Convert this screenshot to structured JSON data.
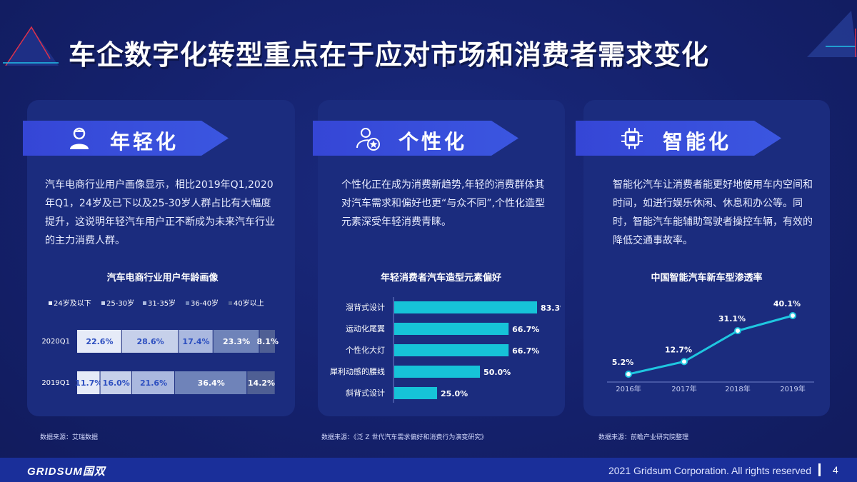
{
  "title": "车企数字化转型重点在于应对市场和消费者需求变化",
  "sections": [
    {
      "heading": "年轻化",
      "icon": "user-icon",
      "description": "汽车电商行业用户画像显示，相比2019年Q1,2020年Q1，24岁及已下以及25-30岁人群占比有大幅度提升，这说明年轻汽车用户正不断成为未来汽车行业的主力消费人群。",
      "chart_title": "汽车电商行业用户年龄画像",
      "source": "数据来源：艾瑞数据"
    },
    {
      "heading": "个性化",
      "icon": "person-star-icon",
      "description": "个性化正在成为消费新趋势,年轻的消费群体其对汽车需求和偏好也更“与众不同”,个性化造型元素深受年轻消费青睐。",
      "chart_title": "年轻消费者汽车造型元素偏好",
      "source": "数据来源：《泛 Z 世代汽车需求偏好和消费行为演变研究》"
    },
    {
      "heading": "智能化",
      "icon": "chip-icon",
      "description": "智能化汽车让消费者能更好地使用车内空间和时间，如进行娱乐休闲、休息和办公等。同时，智能汽车能辅助驾驶者操控车辆，有效的降低交通事故率。",
      "chart_title": "中国智能汽车新车型渗透率",
      "source": "数据来源：前瞻产业研究院整理"
    }
  ],
  "chart_data": [
    {
      "type": "bar",
      "orientation": "horizontal-stacked",
      "title": "汽车电商行业用户年龄画像",
      "categories": [
        "2020Q1",
        "2019Q1"
      ],
      "series": [
        {
          "name": "24岁及以下",
          "values": [
            22.6,
            11.7
          ],
          "color": "#e6ebf8"
        },
        {
          "name": "25-30岁",
          "values": [
            28.6,
            16.0
          ],
          "color": "#c6d0ea"
        },
        {
          "name": "31-35岁",
          "values": [
            17.4,
            21.6
          ],
          "color": "#aab8df"
        },
        {
          "name": "36-40岁",
          "values": [
            23.3,
            36.4
          ],
          "color": "#6f83b9"
        },
        {
          "name": "40岁以上",
          "values": [
            8.1,
            14.2
          ],
          "color": "#4f5f94"
        }
      ],
      "value_labels": [
        [
          "22.6%",
          "28.6%",
          "17.4%",
          "23.3%",
          "8.1%"
        ],
        [
          "11.7%",
          "16.0%",
          "21.6%",
          "36.4%",
          "14.2%"
        ]
      ],
      "legend": "top"
    },
    {
      "type": "bar",
      "orientation": "horizontal",
      "title": "年轻消费者汽车造型元素偏好",
      "categories": [
        "溜背式设计",
        "运动化尾翼",
        "个性化大灯",
        "犀利动感的腰线",
        "斜背式设计"
      ],
      "values": [
        83.3,
        66.7,
        66.7,
        50.0,
        25.0
      ],
      "value_labels": [
        "83.3%",
        "66.7%",
        "66.7%",
        "50.0%",
        "25.0%"
      ],
      "color": "#16c3d8"
    },
    {
      "type": "line",
      "title": "中国智能汽车新车型渗透率",
      "x": [
        "2016年",
        "2017年",
        "2018年",
        "2019年"
      ],
      "values": [
        5.2,
        12.7,
        31.1,
        40.1
      ],
      "value_labels": [
        "5.2%",
        "12.7%",
        "31.1%",
        "40.1%"
      ],
      "color": "#1fc7e0"
    }
  ],
  "footer": {
    "logo": "GRIDSUM国双",
    "copyright": "2021 Gridsum Corporation. All rights reserved",
    "page": "4"
  }
}
